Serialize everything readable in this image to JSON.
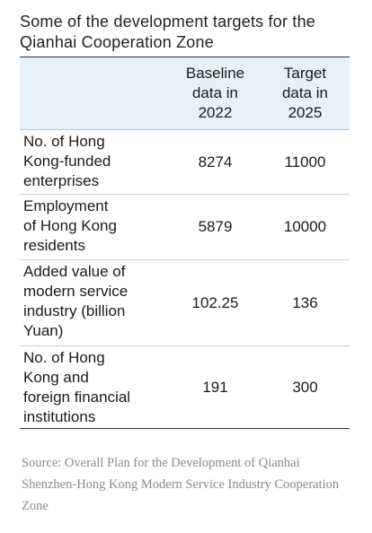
{
  "title": "Some of the development targets for the Qianhai Cooperation Zone",
  "table": {
    "columns": [
      "",
      "Baseline data in 2022",
      "Target data in 2025"
    ],
    "header_lines": {
      "baseline": [
        "Baseline",
        "data in",
        "2022"
      ],
      "target": [
        "Target",
        "data in",
        "2025"
      ]
    },
    "rows": [
      {
        "label": "No. of Hong Kong-funded enterprises",
        "label_lines": [
          "No. of Hong",
          "Kong-funded",
          "enterprises"
        ],
        "baseline": "8274",
        "target": "11000"
      },
      {
        "label": "Employment of Hong Kong residents",
        "label_lines": [
          "Employment",
          "of Hong Kong",
          "residents"
        ],
        "baseline": "5879",
        "target": "10000"
      },
      {
        "label": "Added value of modern service industry (billion Yuan)",
        "label_lines": [
          "Added value of",
          "modern service",
          "industry (billion",
          "Yuan)"
        ],
        "baseline": "102.25",
        "target": "136"
      },
      {
        "label": "No. of Hong Kong and foreign financial institutions",
        "label_lines": [
          "No. of Hong",
          "Kong and",
          "foreign financial",
          "institutions"
        ],
        "baseline": "191",
        "target": "300"
      }
    ]
  },
  "source": "Source: Overall Plan for the Development of Qianhai Shenzhen-Hong Kong Modern Service Industry Cooperation Zone",
  "colors": {
    "header_bg": "#e6f1fa",
    "source_text": "#8a8a8a"
  }
}
